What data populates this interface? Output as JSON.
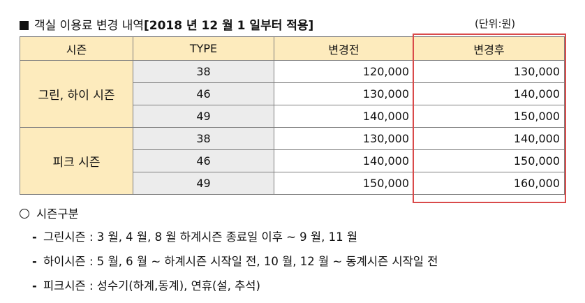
{
  "title": {
    "prefix": "객실 이용료 변경 내역",
    "bold_part": "[2018 년 12 월  1 일부터 적용]",
    "unit": "(단위:원)"
  },
  "table": {
    "headers": [
      "시즌",
      "TYPE",
      "변경전",
      "변경후"
    ],
    "groups": [
      {
        "season": "그린, 하이 시즌",
        "rows": [
          {
            "type": "38",
            "before": "120,000",
            "after": "130,000"
          },
          {
            "type": "46",
            "before": "130,000",
            "after": "140,000"
          },
          {
            "type": "49",
            "before": "140,000",
            "after": "150,000"
          }
        ]
      },
      {
        "season": "피크 시즌",
        "rows": [
          {
            "type": "38",
            "before": "130,000",
            "after": "140,000"
          },
          {
            "type": "46",
            "before": "140,000",
            "after": "150,000"
          },
          {
            "type": "49",
            "before": "150,000",
            "after": "160,000"
          }
        ]
      }
    ]
  },
  "notes": {
    "heading": "시즌구분",
    "items": [
      "그린시즌 : 3 월, 4 월, 8 월 하계시즌 종료일 이후 ~ 9 월, 11 월",
      "하이시즌 : 5 월, 6 월 ~ 하계시즌 시작일 전, 10 월, 12 월 ~ 동계시즌 시작일 전",
      "피크시즌 : 성수기(하계,동계), 연휴(설, 추석)"
    ]
  },
  "colors": {
    "header_bg": "#fdebbd",
    "type_bg": "#ececec",
    "highlight_border": "#d94a4a"
  }
}
